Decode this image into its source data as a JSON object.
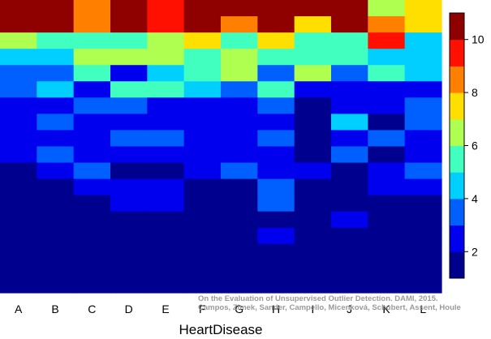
{
  "chart_data": {
    "type": "heatmap",
    "xlabel": "HeartDisease",
    "ylabel": "",
    "columns": [
      "A",
      "B",
      "C",
      "D",
      "E",
      "F",
      "G",
      "H",
      "I",
      "J",
      "K",
      "L"
    ],
    "row_count": 18,
    "values": [
      [
        10,
        10,
        8,
        10,
        9,
        10,
        10,
        10,
        10,
        10,
        6,
        7
      ],
      [
        10,
        10,
        8,
        10,
        9,
        10,
        8,
        10,
        7,
        10,
        8,
        7
      ],
      [
        6,
        5,
        5,
        5,
        6,
        7,
        5,
        7,
        5,
        5,
        9,
        4
      ],
      [
        4,
        4,
        6,
        6,
        6,
        5,
        6,
        5,
        5,
        5,
        4,
        4
      ],
      [
        3,
        3,
        5,
        2,
        4,
        5,
        6,
        3,
        6,
        3,
        5,
        4
      ],
      [
        3,
        4,
        2,
        5,
        5,
        4,
        3,
        5,
        2,
        2,
        2,
        2
      ],
      [
        2,
        2,
        3,
        3,
        2,
        2,
        2,
        3,
        1,
        2,
        2,
        3
      ],
      [
        2,
        3,
        2,
        2,
        2,
        2,
        2,
        2,
        1,
        4,
        1,
        3
      ],
      [
        2,
        2,
        2,
        3,
        3,
        2,
        2,
        3,
        1,
        2,
        3,
        2
      ],
      [
        2,
        3,
        2,
        2,
        2,
        2,
        2,
        2,
        1,
        3,
        1,
        2
      ],
      [
        1,
        2,
        3,
        1,
        1,
        2,
        3,
        2,
        2,
        1,
        2,
        3
      ],
      [
        1,
        1,
        2,
        2,
        2,
        1,
        1,
        3,
        1,
        1,
        2,
        2
      ],
      [
        1,
        1,
        1,
        2,
        2,
        1,
        1,
        3,
        1,
        1,
        1,
        1
      ],
      [
        1,
        1,
        1,
        1,
        1,
        1,
        1,
        1,
        1,
        2,
        1,
        1
      ],
      [
        1,
        1,
        1,
        1,
        1,
        1,
        1,
        2,
        1,
        1,
        1,
        1
      ],
      [
        1,
        1,
        1,
        1,
        1,
        1,
        1,
        1,
        1,
        1,
        1,
        1
      ],
      [
        1,
        1,
        1,
        1,
        1,
        1,
        1,
        1,
        1,
        1,
        1,
        1
      ],
      [
        1,
        1,
        1,
        1,
        1,
        1,
        1,
        1,
        1,
        1,
        1,
        1
      ]
    ],
    "color_scale": {
      "min": 1,
      "max": 11,
      "ticks": [
        2,
        4,
        6,
        8,
        10
      ],
      "colors": [
        "#00008f",
        "#0000ef",
        "#005fff",
        "#00cfff",
        "#40ffbf",
        "#afff50",
        "#ffdf00",
        "#ff7f00",
        "#ff1000",
        "#8f0000"
      ]
    },
    "annotation": [
      "On the Evaluation of Unsupervised Outlier Detection. DAMI, 2015.",
      "Campos, Zimek, Sander, Campello, Micenková, Schubert, Assent, Houle"
    ],
    "grid": false,
    "legend": "colorbar-right"
  }
}
